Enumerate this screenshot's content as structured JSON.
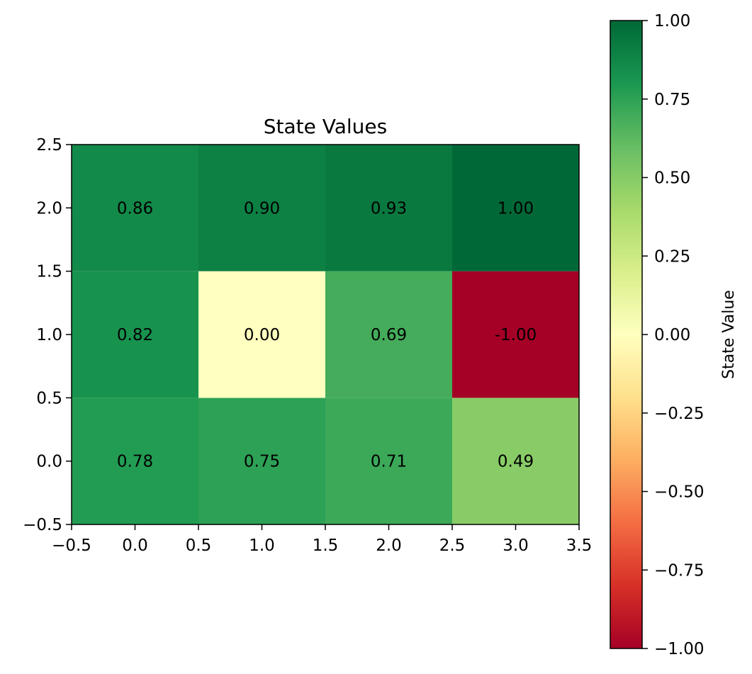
{
  "chart_data": {
    "type": "heatmap",
    "title": "State Values",
    "xlabel": "",
    "ylabel": "",
    "xlim": [
      -0.5,
      3.5
    ],
    "ylim": [
      -0.5,
      2.5
    ],
    "x_ticks": [
      "−0.5",
      "0.0",
      "0.5",
      "1.0",
      "1.5",
      "2.0",
      "2.5",
      "3.0",
      "3.5"
    ],
    "y_ticks": [
      "−0.5",
      "0.0",
      "0.5",
      "1.0",
      "1.5",
      "2.0",
      "2.5"
    ],
    "x": [
      0,
      1,
      2,
      3
    ],
    "y": [
      0,
      1,
      2
    ],
    "values": [
      [
        0.78,
        0.75,
        0.71,
        0.49
      ],
      [
        0.82,
        0.0,
        0.69,
        -1.0
      ],
      [
        0.86,
        0.9,
        0.93,
        1.0
      ]
    ],
    "value_labels": [
      [
        "0.78",
        "0.75",
        "0.71",
        "0.49"
      ],
      [
        "0.82",
        "0.00",
        "0.69",
        "-1.00"
      ],
      [
        "0.86",
        "0.90",
        "0.93",
        "1.00"
      ]
    ],
    "colormap": "RdYlGn",
    "colormap_stops": [
      "#a50026",
      "#d73027",
      "#f46d43",
      "#fdae61",
      "#fee08b",
      "#ffffbf",
      "#d9ef8b",
      "#a6d96a",
      "#66bd63",
      "#1a9850",
      "#006837"
    ],
    "colorbar": {
      "label": "State Value",
      "range": [
        -1.0,
        1.0
      ],
      "ticks": [
        "1.00",
        "0.75",
        "0.50",
        "0.25",
        "0.00",
        "−0.25",
        "−0.50",
        "−0.75",
        "−1.00"
      ],
      "tick_values": [
        1.0,
        0.75,
        0.5,
        0.25,
        0.0,
        -0.25,
        -0.5,
        -0.75,
        -1.0
      ]
    },
    "grid": false
  }
}
